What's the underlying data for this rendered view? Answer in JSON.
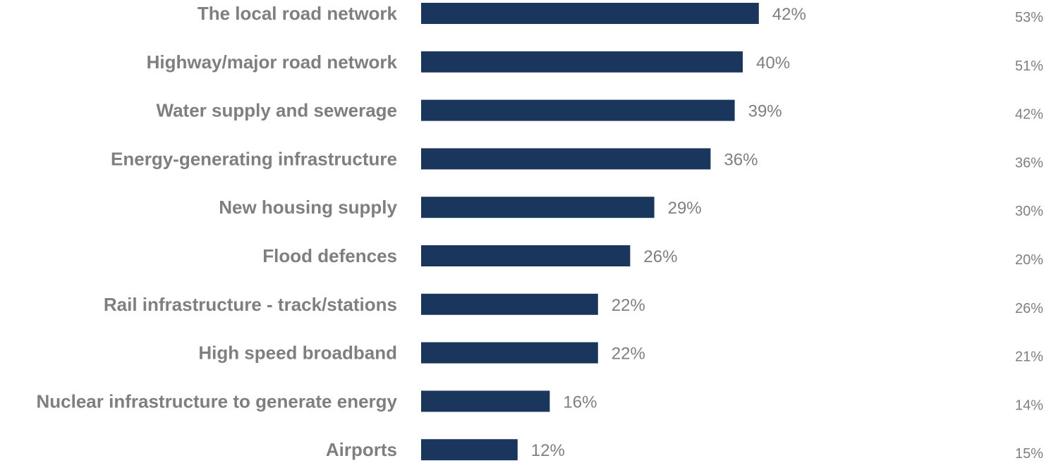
{
  "chart_data": {
    "type": "bar",
    "orientation": "horizontal",
    "categories": [
      "The local road network",
      "Highway/major road network",
      "Water supply and sewerage",
      "Energy-generating infrastructure",
      "New housing supply",
      "Flood defences",
      "Rail infrastructure - track/stations",
      "High speed broadband",
      "Nuclear infrastructure to generate energy",
      "Airports"
    ],
    "series": [
      {
        "values": [
          42,
          40,
          39,
          36,
          29,
          26,
          22,
          22,
          16,
          12
        ],
        "labels": [
          "42%",
          "40%",
          "39%",
          "36%",
          "29%",
          "26%",
          "22%",
          "22%",
          "16%",
          "12%"
        ],
        "color": "#1b365d"
      }
    ],
    "comparison_values": [
      53,
      51,
      42,
      36,
      30,
      20,
      26,
      21,
      14,
      15
    ],
    "comparison_labels": [
      "53%",
      "51%",
      "42%",
      "36%",
      "30%",
      "20%",
      "26%",
      "21%",
      "14%",
      "15%"
    ],
    "text_color": "#7f7f7f",
    "xlim": [
      0,
      100
    ],
    "grid": false,
    "legend": "none"
  }
}
